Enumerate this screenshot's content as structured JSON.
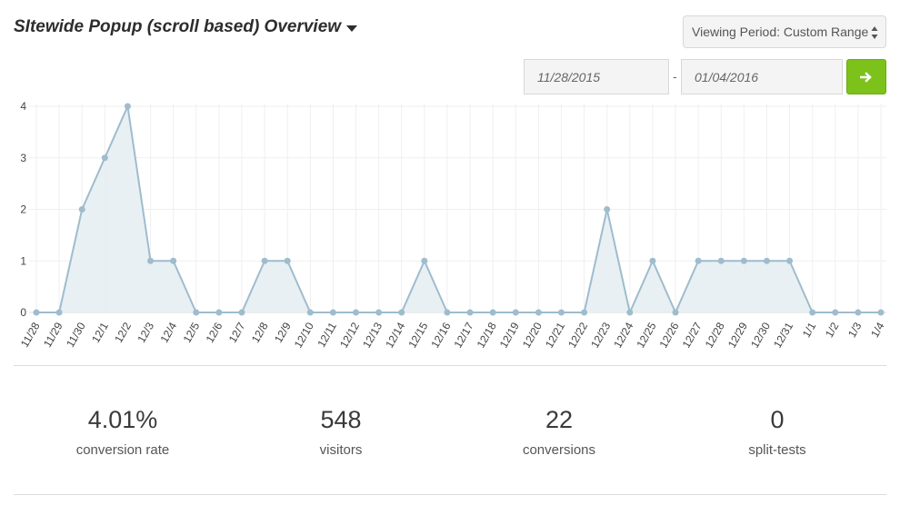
{
  "header": {
    "title": "SItewide Popup (scroll based) Overview"
  },
  "period": {
    "label": "Viewing Period: Custom Range"
  },
  "date_range": {
    "from": "11/28/2015",
    "separator": "-",
    "to": "01/04/2016"
  },
  "icons": {
    "go": "arrow-right-icon",
    "title_menu": "caret-down-icon",
    "select": "updown-icon"
  },
  "colors": {
    "accent": "#7cc21b",
    "series_line": "#9fbccd",
    "series_fill": "#e6eef3"
  },
  "stats": [
    {
      "value": "4.01%",
      "label": "conversion rate"
    },
    {
      "value": "548",
      "label": "visitors"
    },
    {
      "value": "22",
      "label": "conversions"
    },
    {
      "value": "0",
      "label": "split-tests"
    }
  ],
  "chart_data": {
    "type": "area",
    "categories": [
      "11/28",
      "11/29",
      "11/30",
      "12/1",
      "12/2",
      "12/3",
      "12/4",
      "12/5",
      "12/6",
      "12/7",
      "12/8",
      "12/9",
      "12/10",
      "12/11",
      "12/12",
      "12/13",
      "12/14",
      "12/15",
      "12/16",
      "12/17",
      "12/18",
      "12/19",
      "12/20",
      "12/21",
      "12/22",
      "12/23",
      "12/24",
      "12/25",
      "12/26",
      "12/27",
      "12/28",
      "12/29",
      "12/30",
      "12/31",
      "1/1",
      "1/2",
      "1/3",
      "1/4"
    ],
    "values": [
      0,
      0,
      2,
      3,
      4,
      1,
      1,
      0,
      0,
      0,
      1,
      1,
      0,
      0,
      0,
      0,
      0,
      1,
      0,
      0,
      0,
      0,
      0,
      0,
      0,
      2,
      0,
      1,
      0,
      1,
      1,
      1,
      1,
      1,
      0,
      0,
      0,
      0
    ],
    "yticks": [
      "0",
      "1",
      "2",
      "3",
      "4"
    ],
    "ylim": [
      0,
      4
    ],
    "grid": true,
    "legend": "none"
  }
}
